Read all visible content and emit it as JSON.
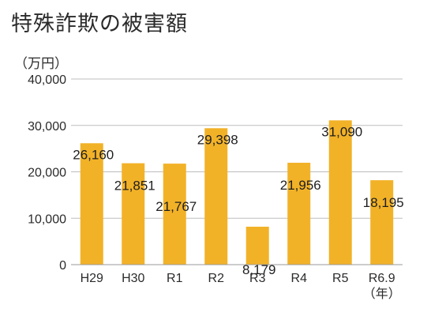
{
  "chart_data": {
    "type": "bar",
    "title": "特殊詐欺の被害額",
    "ylabel": "（万円）",
    "xlabel": "",
    "categories": [
      "H29",
      "H30",
      "R1",
      "R2",
      "R3",
      "R4",
      "R5",
      "R6.9"
    ],
    "category_suffix_last": "（年）",
    "values": [
      26160,
      21851,
      21767,
      29398,
      8179,
      21956,
      31090,
      18195
    ],
    "data_labels": [
      "26,160",
      "21,851",
      "21,767",
      "29,398",
      "8,179",
      "21,956",
      "31,090",
      "18,195"
    ],
    "ylim": [
      0,
      40000
    ],
    "yticks": [
      0,
      10000,
      20000,
      30000,
      40000
    ],
    "ytick_labels": [
      "0",
      "10,000",
      "20,000",
      "30,000",
      "40,000"
    ],
    "grid": true,
    "bar_color": "#f2b228",
    "grid_color": "#bdbdbd"
  }
}
